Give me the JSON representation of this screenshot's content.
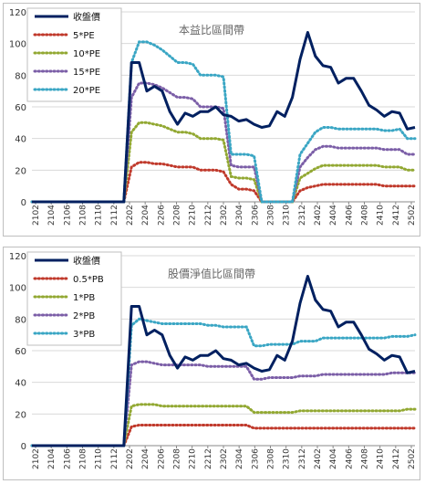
{
  "chart_data": [
    {
      "type": "line",
      "title": "本益比區間帶",
      "ylim": [
        0,
        120
      ],
      "yticks": [
        0,
        20,
        40,
        60,
        80,
        100,
        120
      ],
      "x_labels": [
        "2102",
        "2104",
        "2106",
        "2108",
        "2110",
        "2112",
        "2202",
        "2204",
        "2206",
        "2208",
        "2210",
        "2212",
        "2302",
        "2304",
        "2306",
        "2308",
        "2310",
        "2312",
        "2402",
        "2404",
        "2406",
        "2408",
        "2410",
        "2412",
        "2502"
      ],
      "grid": true,
      "legend_position": "top-left",
      "series": [
        {
          "name": "收盤價",
          "color": "#002060",
          "style": "solid",
          "values": [
            0,
            0,
            0,
            0,
            0,
            0,
            0,
            0,
            0,
            0,
            0,
            0,
            0,
            88,
            88,
            70,
            73,
            70,
            57,
            49,
            56,
            54,
            57,
            57,
            60,
            55,
            54,
            51,
            52,
            49,
            47,
            48,
            57,
            54,
            66,
            90,
            107,
            92,
            86,
            85,
            75,
            78,
            78,
            70,
            61,
            58,
            54,
            57,
            56,
            46,
            47
          ]
        },
        {
          "name": "5*PE",
          "color": "#c0392b",
          "style": "dotted",
          "values": [
            0,
            0,
            0,
            0,
            0,
            0,
            0,
            0,
            0,
            0,
            0,
            0,
            0,
            22,
            25,
            25,
            24,
            24,
            23,
            22,
            22,
            22,
            20,
            20,
            20,
            19,
            11,
            8,
            8,
            7,
            0,
            0,
            0,
            0,
            0,
            7,
            9,
            10,
            11,
            11,
            11,
            11,
            11,
            11,
            11,
            11,
            10,
            10,
            10,
            10,
            10
          ]
        },
        {
          "name": "10*PE",
          "color": "#92a832",
          "style": "dotted",
          "values": [
            0,
            0,
            0,
            0,
            0,
            0,
            0,
            0,
            0,
            0,
            0,
            0,
            0,
            44,
            50,
            50,
            49,
            48,
            46,
            44,
            44,
            43,
            40,
            40,
            40,
            39,
            16,
            15,
            15,
            14,
            0,
            0,
            0,
            0,
            0,
            15,
            18,
            21,
            23,
            23,
            23,
            23,
            23,
            23,
            23,
            23,
            22,
            22,
            22,
            20,
            20
          ]
        },
        {
          "name": "15*PE",
          "color": "#7b5ea7",
          "style": "dotted",
          "values": [
            0,
            0,
            0,
            0,
            0,
            0,
            0,
            0,
            0,
            0,
            0,
            0,
            0,
            66,
            75,
            75,
            74,
            72,
            69,
            66,
            66,
            65,
            60,
            60,
            60,
            59,
            23,
            22,
            22,
            22,
            0,
            0,
            0,
            0,
            0,
            22,
            28,
            33,
            35,
            35,
            34,
            34,
            34,
            34,
            34,
            34,
            33,
            33,
            33,
            30,
            30
          ]
        },
        {
          "name": "20*PE",
          "color": "#3aa6c4",
          "style": "dotted",
          "values": [
            0,
            0,
            0,
            0,
            0,
            0,
            0,
            0,
            0,
            0,
            0,
            0,
            0,
            88,
            101,
            101,
            99,
            96,
            92,
            88,
            88,
            87,
            80,
            80,
            80,
            79,
            30,
            30,
            30,
            29,
            0,
            0,
            0,
            0,
            0,
            30,
            37,
            44,
            47,
            47,
            46,
            46,
            46,
            46,
            46,
            46,
            45,
            45,
            46,
            40,
            40
          ]
        }
      ]
    },
    {
      "type": "line",
      "title": "股價淨值比區間帶",
      "ylim": [
        0,
        120
      ],
      "yticks": [
        0,
        20,
        40,
        60,
        80,
        100,
        120
      ],
      "x_labels": [
        "2102",
        "2104",
        "2106",
        "2108",
        "2110",
        "2112",
        "2202",
        "2204",
        "2206",
        "2208",
        "2210",
        "2212",
        "2302",
        "2304",
        "2306",
        "2308",
        "2310",
        "2312",
        "2402",
        "2404",
        "2406",
        "2408",
        "2410",
        "2412",
        "2502"
      ],
      "grid": true,
      "legend_position": "top-left",
      "series": [
        {
          "name": "收盤價",
          "color": "#002060",
          "style": "solid",
          "values": [
            0,
            0,
            0,
            0,
            0,
            0,
            0,
            0,
            0,
            0,
            0,
            0,
            0,
            88,
            88,
            70,
            73,
            70,
            57,
            49,
            56,
            54,
            57,
            57,
            60,
            55,
            54,
            51,
            52,
            49,
            47,
            48,
            57,
            54,
            66,
            90,
            107,
            92,
            86,
            85,
            75,
            78,
            78,
            70,
            61,
            58,
            54,
            57,
            56,
            46,
            47
          ]
        },
        {
          "name": "0.5*PB",
          "color": "#c0392b",
          "style": "dotted",
          "values": [
            0,
            0,
            0,
            0,
            0,
            0,
            0,
            0,
            0,
            0,
            0,
            0,
            0,
            12,
            13,
            13,
            13,
            13,
            13,
            13,
            13,
            13,
            13,
            13,
            13,
            13,
            13,
            13,
            13,
            11,
            11,
            11,
            11,
            11,
            11,
            11,
            11,
            11,
            11,
            11,
            11,
            11,
            11,
            11,
            11,
            11,
            11,
            11,
            11,
            11,
            11
          ]
        },
        {
          "name": "1*PB",
          "color": "#92a832",
          "style": "dotted",
          "values": [
            0,
            0,
            0,
            0,
            0,
            0,
            0,
            0,
            0,
            0,
            0,
            0,
            0,
            25,
            26,
            26,
            26,
            25,
            25,
            25,
            25,
            25,
            25,
            25,
            25,
            25,
            25,
            25,
            25,
            21,
            21,
            21,
            21,
            21,
            21,
            22,
            22,
            22,
            22,
            22,
            22,
            22,
            22,
            22,
            22,
            22,
            22,
            22,
            22,
            23,
            23
          ]
        },
        {
          "name": "2*PB",
          "color": "#7b5ea7",
          "style": "dotted",
          "values": [
            0,
            0,
            0,
            0,
            0,
            0,
            0,
            0,
            0,
            0,
            0,
            0,
            0,
            51,
            53,
            53,
            52,
            51,
            51,
            51,
            51,
            51,
            51,
            50,
            50,
            50,
            50,
            50,
            50,
            42,
            42,
            43,
            43,
            43,
            43,
            44,
            44,
            44,
            45,
            45,
            45,
            45,
            45,
            45,
            45,
            45,
            45,
            46,
            46,
            46,
            46
          ]
        },
        {
          "name": "3*PB",
          "color": "#3aa6c4",
          "style": "dotted",
          "values": [
            0,
            0,
            0,
            0,
            0,
            0,
            0,
            0,
            0,
            0,
            0,
            0,
            0,
            76,
            80,
            79,
            78,
            77,
            77,
            77,
            77,
            77,
            77,
            76,
            76,
            75,
            75,
            75,
            75,
            63,
            63,
            64,
            64,
            64,
            64,
            66,
            66,
            66,
            68,
            68,
            68,
            68,
            68,
            68,
            68,
            68,
            68,
            69,
            69,
            69,
            70
          ]
        }
      ]
    }
  ]
}
